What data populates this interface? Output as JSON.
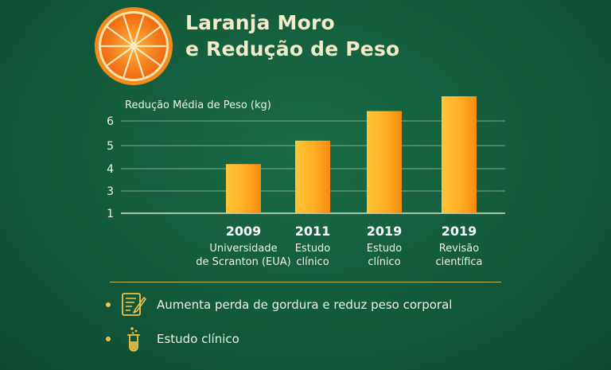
{
  "header": {
    "title_line1": "Laranja Moro",
    "title_line2": "e Redução de Peso",
    "logo_icon": "orange-slice-icon"
  },
  "chart_data": {
    "type": "bar",
    "ylabel": "Redução Média de Peso (kg)",
    "yticks": [
      1,
      3,
      4,
      5,
      6
    ],
    "ylim": [
      1,
      6.5
    ],
    "grid": true,
    "categories": [
      {
        "year": "2009",
        "desc_line1": "Universidade",
        "desc_line2": "de Scranton (EUA)"
      },
      {
        "year": "2011",
        "desc_line1": "Estudo",
        "desc_line2": "clínico"
      },
      {
        "year": "2019",
        "desc_line1": "Estudo",
        "desc_line2": "clínico"
      },
      {
        "year": "2019",
        "desc_line1": "Revisão",
        "desc_line2": "científica"
      }
    ],
    "values": [
      4.2,
      5.2,
      6.4,
      7.0
    ],
    "bar_color": "#f9a21c"
  },
  "notes": [
    {
      "icon": "checklist-icon",
      "text": "Aumenta perda de gordura e reduz peso corporal"
    },
    {
      "icon": "test-tube-icon",
      "text": "Estudo clínico"
    }
  ]
}
